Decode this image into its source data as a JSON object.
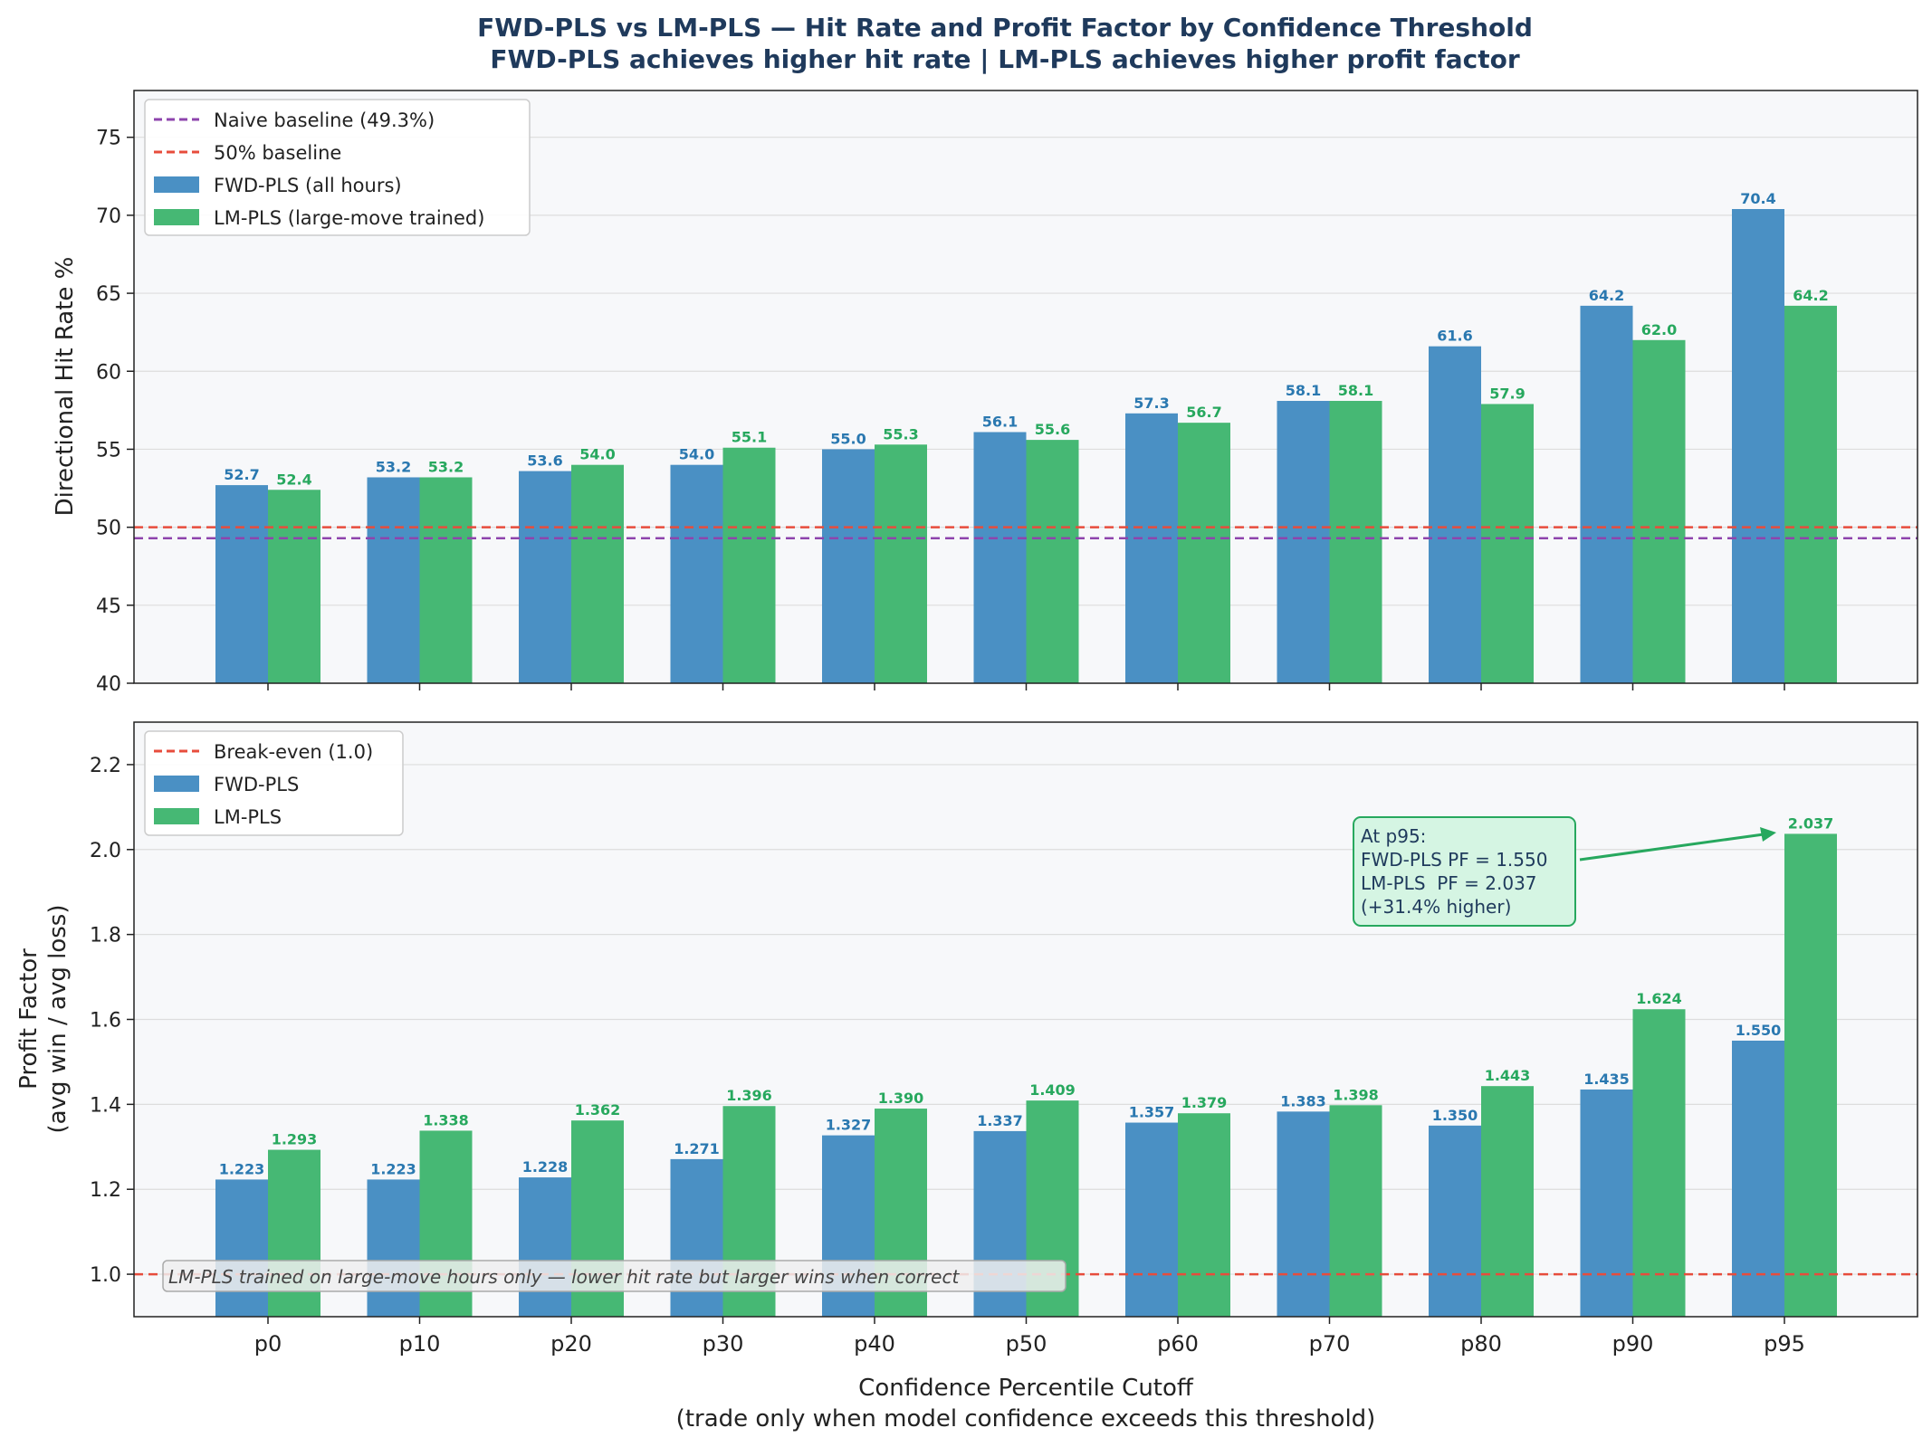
{
  "figure": {
    "title_line1": "FWD-PLS vs LM-PLS — Hit Rate and Profit Factor by Confidence Threshold",
    "title_line2": "FWD-PLS achieves higher hit rate | LM-PLS achieves higher profit factor",
    "xlabel_line1": "Confidence Percentile Cutoff",
    "xlabel_line2": "(trade only when model confidence exceeds this threshold)"
  },
  "colors": {
    "fwd": "#4a90c4",
    "lm": "#46b874",
    "fwd_label": "#2a78b0",
    "lm_label": "#27a85e",
    "naive": "#8e44ad",
    "baseline": "#e74c3c",
    "panel_bg": "#f7f8fa",
    "annotation_border": "#27a85e",
    "annotation_fill": "#d5f5e3"
  },
  "chart_data": [
    {
      "type": "bar",
      "categories": [
        "p0",
        "p10",
        "p20",
        "p30",
        "p40",
        "p50",
        "p60",
        "p70",
        "p80",
        "p90",
        "p95"
      ],
      "series": [
        {
          "name": "FWD-PLS (all hours)",
          "values": [
            52.7,
            53.2,
            53.6,
            54.0,
            55.0,
            56.1,
            57.3,
            58.1,
            61.6,
            64.2,
            70.4
          ],
          "labels": [
            "52.7",
            "53.2",
            "53.6",
            "54.0",
            "55.0",
            "56.1",
            "57.3",
            "58.1",
            "61.6",
            "64.2",
            "70.4"
          ]
        },
        {
          "name": "LM-PLS (large-move trained)",
          "values": [
            52.4,
            53.2,
            54.0,
            55.1,
            55.3,
            55.6,
            56.7,
            58.1,
            57.9,
            62.0,
            64.2
          ],
          "labels": [
            "52.4",
            "53.2",
            "54.0",
            "55.1",
            "55.3",
            "55.6",
            "56.7",
            "58.1",
            "57.9",
            "62.0",
            "64.2"
          ]
        }
      ],
      "reference_lines": [
        {
          "name": "Naive baseline (49.3%)",
          "value": 49.3
        },
        {
          "name": "50% baseline",
          "value": 50
        }
      ],
      "ylabel": "Directional Hit Rate %",
      "ylim": [
        40,
        78
      ],
      "yticks": [
        40,
        45,
        50,
        55,
        60,
        65,
        70,
        75
      ],
      "grid": "horizontal",
      "legend": "top-left"
    },
    {
      "type": "bar",
      "categories": [
        "p0",
        "p10",
        "p20",
        "p30",
        "p40",
        "p50",
        "p60",
        "p70",
        "p80",
        "p90",
        "p95"
      ],
      "series": [
        {
          "name": "FWD-PLS",
          "values": [
            1.223,
            1.223,
            1.228,
            1.271,
            1.327,
            1.337,
            1.357,
            1.383,
            1.35,
            1.435,
            1.55
          ],
          "labels": [
            "1.223",
            "1.223",
            "1.228",
            "1.271",
            "1.327",
            "1.337",
            "1.357",
            "1.383",
            "1.350",
            "1.435",
            "1.550"
          ]
        },
        {
          "name": "LM-PLS",
          "values": [
            1.293,
            1.338,
            1.362,
            1.396,
            1.39,
            1.409,
            1.379,
            1.398,
            1.443,
            1.624,
            2.037
          ],
          "labels": [
            "1.293",
            "1.338",
            "1.362",
            "1.396",
            "1.390",
            "1.409",
            "1.379",
            "1.398",
            "1.443",
            "1.624",
            "2.037"
          ]
        }
      ],
      "reference_lines": [
        {
          "name": "Break-even (1.0)",
          "value": 1.0
        }
      ],
      "ylabel_line1": "Profit Factor",
      "ylabel_line2": "(avg win / avg loss)",
      "ylim": [
        0.9,
        2.3
      ],
      "yticks": [
        "1.0",
        "1.2",
        "1.4",
        "1.6",
        "1.8",
        "2.0",
        "2.2"
      ],
      "grid": "horizontal",
      "legend": "top-left",
      "annotation": {
        "lines": [
          "At p95:",
          "FWD-PLS PF = 1.550",
          "LM-PLS  PF = 2.037",
          "(+31.4% higher)"
        ],
        "target_category": "p95",
        "target_value": 2.037
      },
      "note": "LM-PLS trained on large-move hours only — lower hit rate but larger wins when correct"
    }
  ]
}
